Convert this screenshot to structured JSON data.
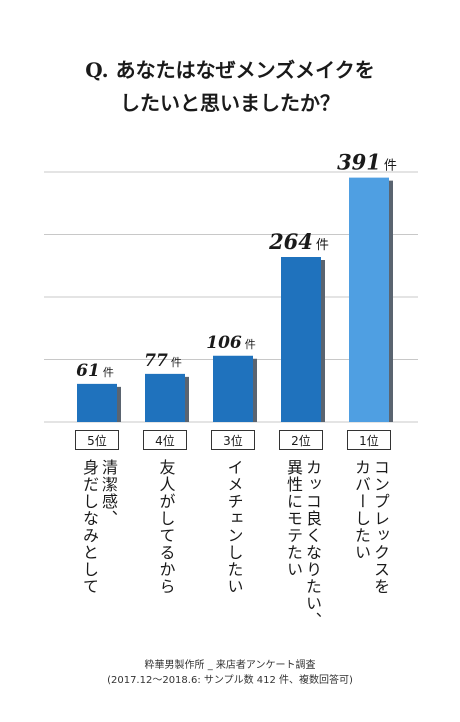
{
  "title": {
    "line1": "Q. あなたはなぜメンズメイクを",
    "line2": "したいと思いましたか？"
  },
  "chart_data": {
    "type": "bar",
    "unit": "件",
    "ylim": [
      0,
      400
    ],
    "grid": true,
    "categories": [
      "5位",
      "4位",
      "3位",
      "2位",
      "1位"
    ],
    "reasons": [
      "清潔感、\n身だしなみとして",
      "友人がしてるから",
      "イメチェンしたい",
      "カッコ良くなりたい、\n異性にモテたい",
      "コンプレックスを\nカバーしたい"
    ],
    "values": [
      61,
      77,
      106,
      264,
      391
    ],
    "colors": [
      "#1f72bd",
      "#1f72bd",
      "#1f72bd",
      "#1f72bd",
      "#4f9fe2"
    ],
    "shadow_color": "#5a6470",
    "grid_color": "#c8c8c8"
  },
  "footer": {
    "line1": "粋華男製作所 _ 来店者アンケート調査",
    "line2": "(2017.12～2018.6: サンプル数 412 件、複数回答可)"
  }
}
